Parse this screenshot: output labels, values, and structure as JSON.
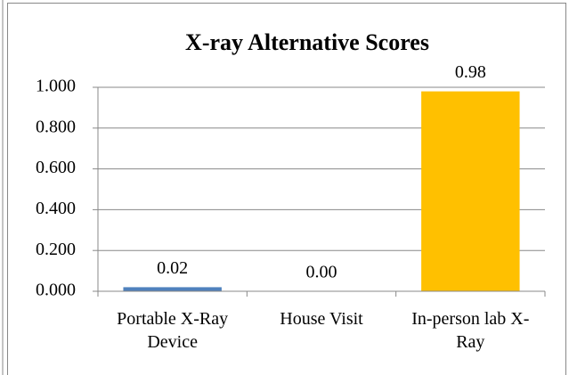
{
  "chart_data": {
    "type": "bar",
    "title": "X-ray Alternative Scores",
    "categories": [
      "Portable X-Ray Device",
      "House Visit",
      "In-person lab X-Ray"
    ],
    "values": [
      0.02,
      0,
      0.98
    ],
    "value_labels": [
      "0.02",
      "0.00",
      "0.98"
    ],
    "colors": [
      "#4f81bd",
      "#4f81bd",
      "#ffc000"
    ],
    "ylim": [
      0,
      1
    ],
    "yticks": [
      {
        "value": 0,
        "label": "0.000"
      },
      {
        "value": 0.2,
        "label": "0.200"
      },
      {
        "value": 0.4,
        "label": "0.400"
      },
      {
        "value": 0.6,
        "label": "0.600"
      },
      {
        "value": 0.8,
        "label": "0.800"
      },
      {
        "value": 1,
        "label": "1.000"
      }
    ],
    "grid": true
  }
}
